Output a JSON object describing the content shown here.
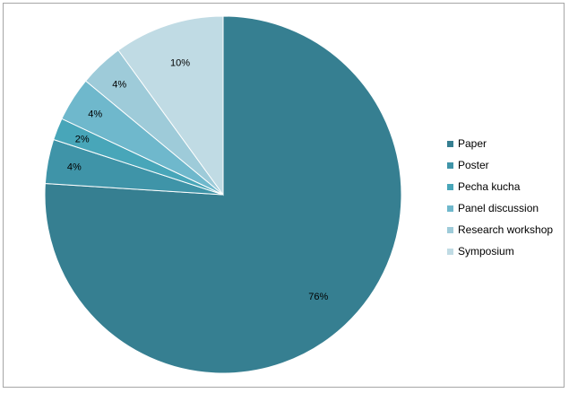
{
  "chart_data": {
    "type": "pie",
    "categories": [
      "Paper",
      "Poster",
      "Pecha kucha",
      "Panel discussion",
      "Research workshop",
      "Symposium"
    ],
    "values": [
      76,
      4,
      2,
      4,
      4,
      10
    ],
    "data_labels": [
      "76%",
      "4%",
      "2%",
      "4%",
      "4%",
      "10%"
    ],
    "colors": [
      "#367f91",
      "#3f94a8",
      "#48a6b9",
      "#6fb8cc",
      "#9ecbd9",
      "#c0dbe4"
    ],
    "start_angle_deg": 0,
    "direction": "clockwise",
    "legend_position": "right"
  }
}
